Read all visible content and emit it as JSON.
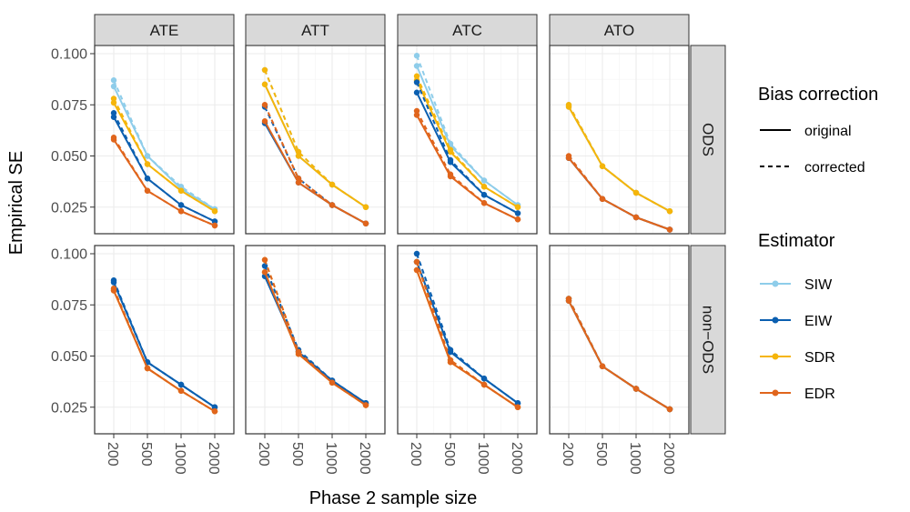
{
  "chart_data": {
    "type": "line",
    "x": [
      200,
      500,
      1000,
      2000
    ],
    "xtick_labels": [
      "200",
      "500",
      "1000",
      "2000"
    ],
    "xlabel": "Phase 2 sample size",
    "ylabel": "Empirical SE",
    "ylim": [
      0.012,
      0.104
    ],
    "yticks": [
      0.025,
      0.05,
      0.075,
      0.1
    ],
    "ytick_labels": [
      "0.025",
      "0.050",
      "0.075",
      "0.100"
    ],
    "grid": true,
    "columns": [
      "ATE",
      "ATT",
      "ATC",
      "ATO"
    ],
    "rows": [
      "ODS",
      "non−ODS"
    ],
    "legend": {
      "placement": "right",
      "linetype_title": "Bias correction",
      "linetypes": [
        {
          "label": "original",
          "dash": "solid"
        },
        {
          "label": "corrected",
          "dash": "dashed"
        }
      ],
      "estimator_title": "Estimator",
      "estimators": [
        {
          "label": "SIW",
          "color": "#8ecdea"
        },
        {
          "label": "EIW",
          "color": "#0b5fb0"
        },
        {
          "label": "SDR",
          "color": "#f5b50a"
        },
        {
          "label": "EDR",
          "color": "#e0651c"
        }
      ]
    },
    "panels": {
      "ODS": {
        "ATE": {
          "SIW": {
            "original": [
              0.084,
              0.05,
              0.034,
              0.024
            ],
            "corrected": [
              0.087,
              0.05,
              0.035,
              0.024
            ]
          },
          "EIW": {
            "original": [
              0.069,
              0.039,
              0.026,
              0.018
            ],
            "corrected": [
              0.071,
              0.039,
              0.026,
              0.018
            ]
          },
          "SDR": {
            "original": [
              0.076,
              0.046,
              0.033,
              0.023
            ],
            "corrected": [
              0.078,
              0.046,
              0.033,
              0.023
            ]
          },
          "EDR": {
            "original": [
              0.058,
              0.033,
              0.023,
              0.016
            ],
            "corrected": [
              0.059,
              0.033,
              0.023,
              0.016
            ]
          }
        },
        "ATT": {
          "SIW": {
            "original": [
              0.085,
              0.05,
              0.036,
              0.025
            ],
            "corrected": [
              0.092,
              0.052,
              0.036,
              0.025
            ]
          },
          "EIW": {
            "original": [
              0.066,
              0.037,
              0.026,
              0.017
            ],
            "corrected": [
              0.074,
              0.039,
              0.026,
              0.017
            ]
          },
          "SDR": {
            "original": [
              0.085,
              0.05,
              0.036,
              0.025
            ],
            "corrected": [
              0.092,
              0.052,
              0.036,
              0.025
            ]
          },
          "EDR": {
            "original": [
              0.067,
              0.037,
              0.026,
              0.017
            ],
            "corrected": [
              0.075,
              0.039,
              0.026,
              0.017
            ]
          }
        },
        "ATC": {
          "SIW": {
            "original": [
              0.094,
              0.055,
              0.038,
              0.026
            ],
            "corrected": [
              0.099,
              0.056,
              0.038,
              0.026
            ]
          },
          "EIW": {
            "original": [
              0.081,
              0.047,
              0.031,
              0.022
            ],
            "corrected": [
              0.086,
              0.048,
              0.031,
              0.022
            ]
          },
          "SDR": {
            "original": [
              0.087,
              0.052,
              0.035,
              0.025
            ],
            "corrected": [
              0.089,
              0.053,
              0.035,
              0.025
            ]
          },
          "EDR": {
            "original": [
              0.07,
              0.04,
              0.027,
              0.019
            ],
            "corrected": [
              0.072,
              0.041,
              0.027,
              0.019
            ]
          }
        },
        "ATO": {
          "SIW": {
            "original": [
              0.074,
              0.045,
              0.032,
              0.023
            ],
            "corrected": [
              0.075,
              0.045,
              0.032,
              0.023
            ]
          },
          "EIW": {
            "original": [
              0.049,
              0.029,
              0.02,
              0.014
            ],
            "corrected": [
              0.049,
              0.029,
              0.02,
              0.014
            ]
          },
          "SDR": {
            "original": [
              0.074,
              0.045,
              0.032,
              0.023
            ],
            "corrected": [
              0.075,
              0.045,
              0.032,
              0.023
            ]
          },
          "EDR": {
            "original": [
              0.049,
              0.029,
              0.02,
              0.014
            ],
            "corrected": [
              0.05,
              0.029,
              0.02,
              0.014
            ]
          }
        }
      },
      "non−ODS": {
        "ATE": {
          "SIW": {
            "original": [
              0.086,
              0.047,
              0.036,
              0.025
            ],
            "corrected": [
              0.087,
              0.047,
              0.036,
              0.025
            ]
          },
          "EIW": {
            "original": [
              0.086,
              0.047,
              0.036,
              0.025
            ],
            "corrected": [
              0.087,
              0.047,
              0.036,
              0.025
            ]
          },
          "SDR": {
            "original": [
              0.082,
              0.044,
              0.033,
              0.023
            ],
            "corrected": [
              0.083,
              0.044,
              0.033,
              0.023
            ]
          },
          "EDR": {
            "original": [
              0.082,
              0.044,
              0.033,
              0.023
            ],
            "corrected": [
              0.083,
              0.044,
              0.033,
              0.023
            ]
          }
        },
        "ATT": {
          "SIW": {
            "original": [
              0.089,
              0.052,
              0.038,
              0.027
            ],
            "corrected": [
              0.094,
              0.053,
              0.038,
              0.027
            ]
          },
          "EIW": {
            "original": [
              0.089,
              0.052,
              0.038,
              0.027
            ],
            "corrected": [
              0.094,
              0.053,
              0.038,
              0.027
            ]
          },
          "SDR": {
            "original": [
              0.091,
              0.051,
              0.037,
              0.026
            ],
            "corrected": [
              0.097,
              0.052,
              0.037,
              0.026
            ]
          },
          "EDR": {
            "original": [
              0.091,
              0.051,
              0.037,
              0.026
            ],
            "corrected": [
              0.097,
              0.052,
              0.037,
              0.026
            ]
          }
        },
        "ATC": {
          "SIW": {
            "original": [
              0.096,
              0.052,
              0.039,
              0.027
            ],
            "corrected": [
              0.1,
              0.053,
              0.039,
              0.027
            ]
          },
          "EIW": {
            "original": [
              0.096,
              0.052,
              0.039,
              0.027
            ],
            "corrected": [
              0.1,
              0.053,
              0.039,
              0.027
            ]
          },
          "SDR": {
            "original": [
              0.092,
              0.047,
              0.036,
              0.025
            ],
            "corrected": [
              0.096,
              0.048,
              0.036,
              0.025
            ]
          },
          "EDR": {
            "original": [
              0.092,
              0.047,
              0.036,
              0.025
            ],
            "corrected": [
              0.096,
              0.048,
              0.036,
              0.025
            ]
          }
        },
        "ATO": {
          "SIW": {
            "original": [
              0.077,
              0.045,
              0.034,
              0.024
            ],
            "corrected": [
              0.078,
              0.045,
              0.034,
              0.024
            ]
          },
          "EIW": {
            "original": [
              0.077,
              0.045,
              0.034,
              0.024
            ],
            "corrected": [
              0.078,
              0.045,
              0.034,
              0.024
            ]
          },
          "SDR": {
            "original": [
              0.077,
              0.045,
              0.034,
              0.024
            ],
            "corrected": [
              0.078,
              0.045,
              0.034,
              0.024
            ]
          },
          "EDR": {
            "original": [
              0.077,
              0.045,
              0.034,
              0.024
            ],
            "corrected": [
              0.078,
              0.045,
              0.034,
              0.024
            ]
          }
        }
      }
    }
  }
}
